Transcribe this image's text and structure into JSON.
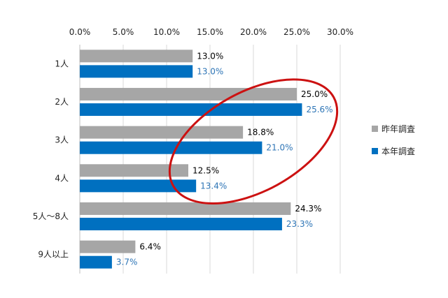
{
  "chart_data": {
    "type": "bar",
    "orientation": "horizontal",
    "categories": [
      "1人",
      "2人",
      "3人",
      "4人",
      "5人～8人",
      "9人以上"
    ],
    "series": [
      {
        "name": "昨年調査",
        "values": [
          13.0,
          25.0,
          18.8,
          12.5,
          24.3,
          6.4
        ],
        "labels": [
          "13.0%",
          "25.0%",
          "18.8%",
          "12.5%",
          "24.3%",
          "6.4%"
        ],
        "color": "#a6a6a6",
        "label_color": "#000000"
      },
      {
        "name": "本年調査",
        "values": [
          13.0,
          25.6,
          21.0,
          13.4,
          23.3,
          3.7
        ],
        "labels": [
          "13.0%",
          "25.6%",
          "21.0%",
          "13.4%",
          "23.3%",
          "3.7%"
        ],
        "color": "#0070c0",
        "label_color": "#2e75b6"
      }
    ],
    "xlim": [
      0,
      30
    ],
    "x_ticks": [
      0,
      5,
      10,
      15,
      20,
      25,
      30
    ],
    "x_tick_labels": [
      "0.0%",
      "5.0%",
      "10.0%",
      "15.0%",
      "20.0%",
      "25.0%",
      "30.0%"
    ],
    "x_axis_position": "top",
    "grid": true,
    "legend_position": "right",
    "annotation": {
      "shape": "ellipse",
      "color": "#cc1111",
      "highlights": [
        "2人",
        "3人",
        "4人"
      ]
    }
  }
}
